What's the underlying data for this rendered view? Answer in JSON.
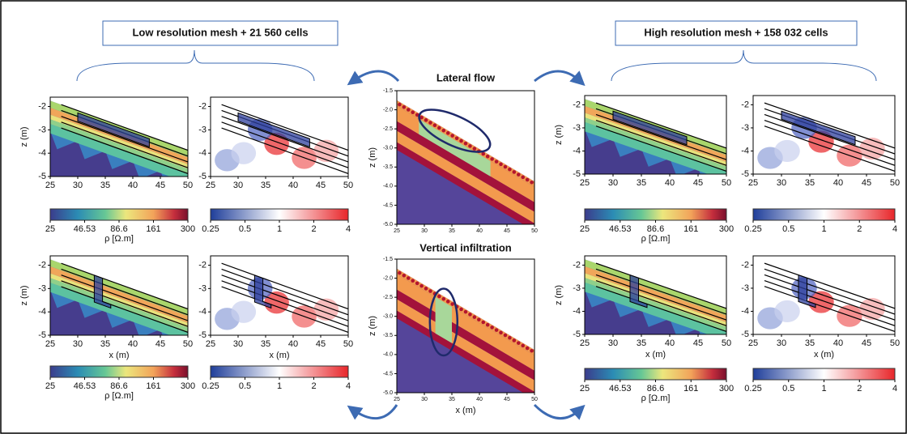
{
  "left_group": {
    "label": "Low resolution mesh + 21 560 cells"
  },
  "right_group": {
    "label": "High resolution mesh + 158 032 cells"
  },
  "center": {
    "top_title": "Lateral flow",
    "bottom_title": "Vertical infiltration",
    "zticks": [
      "-1.5",
      "-2.0",
      "-2.5",
      "-3.0",
      "-3.5",
      "-4.0",
      "-4.5",
      "-5.0"
    ],
    "xticks": [
      "25",
      "30",
      "35",
      "40",
      "45",
      "50"
    ],
    "xlabel": "x (m)",
    "zlabel": "z (m)"
  },
  "panels": {
    "zticks": [
      "-2",
      "-3",
      "-4",
      "-5"
    ],
    "xticks": [
      "25",
      "30",
      "35",
      "40",
      "45",
      "50"
    ],
    "xlabel": "x (m)",
    "zlabel": "z (m)"
  },
  "colorbars": {
    "resistivity": {
      "ticks": [
        "25",
        "46.53",
        "86.6",
        "161",
        "300"
      ],
      "label": "ρ [Ω.m]"
    },
    "ratio": {
      "ticks": [
        "0.25",
        "0.5",
        "1",
        "2",
        "4"
      ]
    }
  }
}
